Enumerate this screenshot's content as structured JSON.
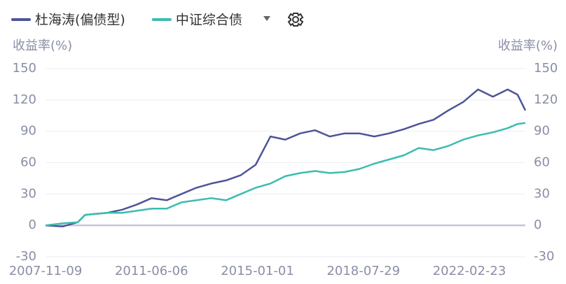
{
  "chart_data": {
    "type": "line",
    "legend": [
      "杜海涛(偏债型)",
      "中证综合债"
    ],
    "y_axis_title": "收益率(%)",
    "y2_axis_title": "收益率(%)",
    "x": [
      "2007-11-09",
      "2008-06-10",
      "2008-12-10",
      "2009-03-10",
      "2009-12-10",
      "2010-06-10",
      "2010-12-10",
      "2011-06-06",
      "2011-12-10",
      "2012-06-10",
      "2012-12-10",
      "2013-06-10",
      "2013-12-10",
      "2014-06-10",
      "2014-12-10",
      "2015-06-10",
      "2015-12-10",
      "2016-06-10",
      "2016-12-10",
      "2017-06-10",
      "2017-12-10",
      "2018-06-10",
      "2018-12-10",
      "2019-06-10",
      "2019-12-10",
      "2020-06-10",
      "2020-12-10",
      "2021-06-10",
      "2021-12-10",
      "2022-06-10",
      "2022-12-10",
      "2023-06-10",
      "2023-10-10",
      "2024-01-14"
    ],
    "series": [
      {
        "name": "杜海涛(偏债型)",
        "color": "#4e5596",
        "values": [
          0,
          -1,
          3,
          10,
          12,
          15,
          20,
          26,
          24,
          30,
          36,
          40,
          43,
          48,
          58,
          85,
          82,
          88,
          91,
          85,
          88,
          88,
          85,
          88,
          92,
          97,
          101,
          110,
          118,
          130,
          123,
          130,
          125,
          110
        ]
      },
      {
        "name": "中证综合债",
        "color": "#3dbcb0",
        "axis": "y2",
        "values": [
          0,
          2,
          3,
          10,
          12,
          12,
          14,
          16,
          16,
          22,
          24,
          26,
          24,
          30,
          36,
          40,
          47,
          50,
          52,
          50,
          51,
          54,
          59,
          63,
          67,
          74,
          72,
          76,
          82,
          86,
          89,
          93,
          97,
          98
        ]
      }
    ],
    "xlim": [
      "2007-11-09",
      "2024-01-14"
    ],
    "xticks": [
      "2007-11-09",
      "2011-06-06",
      "2015-01-01",
      "2018-07-29",
      "2022-02-23"
    ],
    "ylim": [
      -30,
      150
    ],
    "yticks": [
      -30,
      0,
      30,
      60,
      90,
      120,
      150
    ],
    "y2lim": [
      -30,
      150
    ],
    "y2ticks": [
      -30,
      0,
      30,
      60,
      90,
      120,
      150
    ],
    "grid": true
  }
}
